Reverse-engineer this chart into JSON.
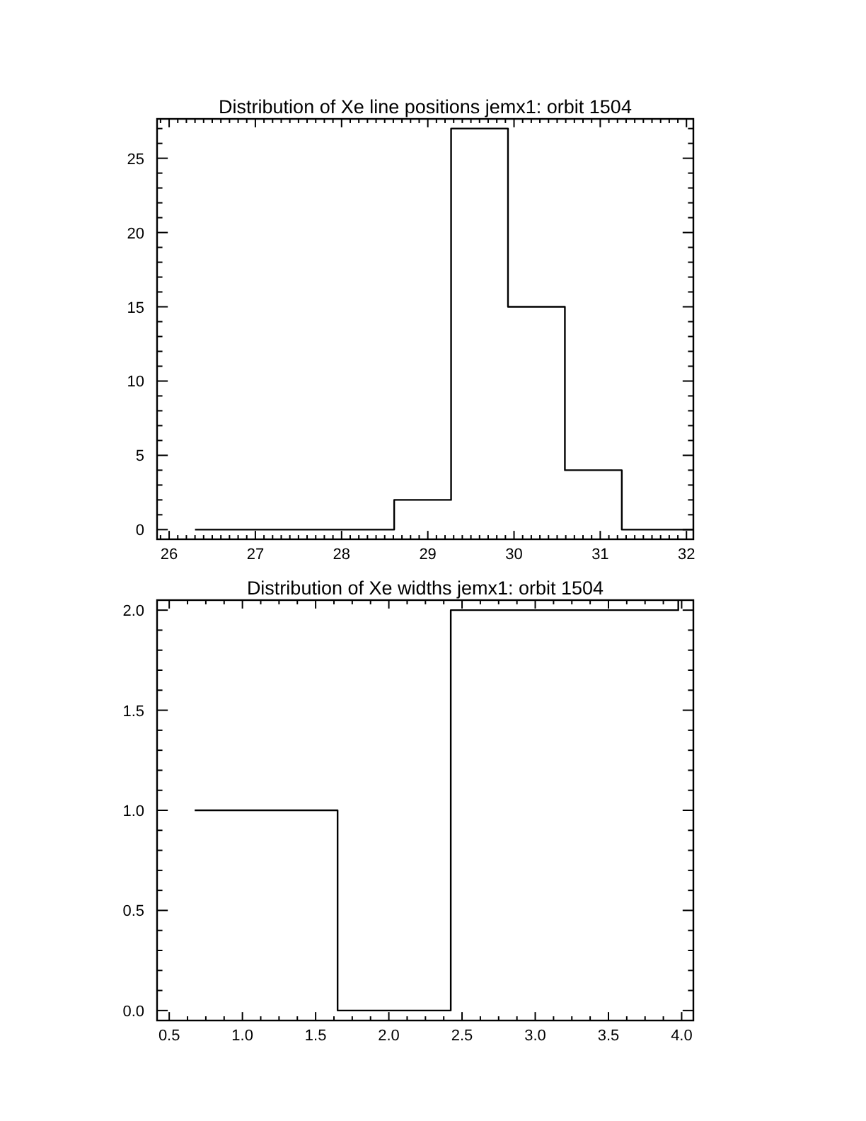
{
  "chart_data": [
    {
      "type": "step",
      "title": "Distribution of Xe line positions jemx1: orbit 1504",
      "x": [
        26.3,
        28.61,
        29.27,
        29.93,
        30.59,
        31.25,
        32.08
      ],
      "values": [
        0,
        2,
        27,
        15,
        4,
        0,
        0
      ],
      "color": "#000000",
      "xlim": [
        25.86,
        32.08
      ],
      "ylim": [
        -0.65,
        27.65
      ],
      "xticks": [
        {
          "value": 25.9,
          "label": null
        },
        26,
        {
          "value": 26.1,
          "label": null
        },
        {
          "value": 26.2,
          "label": null
        },
        {
          "value": 26.3,
          "label": null
        },
        {
          "value": 26.4,
          "label": null
        },
        {
          "value": 26.5,
          "label": null
        },
        {
          "value": 26.6,
          "label": null
        },
        {
          "value": 26.7,
          "label": null
        },
        {
          "value": 26.8,
          "label": null
        },
        {
          "value": 26.9,
          "label": null
        },
        27,
        {
          "value": 27.1,
          "label": null
        },
        {
          "value": 27.2,
          "label": null
        },
        {
          "value": 27.3,
          "label": null
        },
        {
          "value": 27.4,
          "label": null
        },
        {
          "value": 27.5,
          "label": null
        },
        {
          "value": 27.6,
          "label": null
        },
        {
          "value": 27.7,
          "label": null
        },
        {
          "value": 27.8,
          "label": null
        },
        {
          "value": 27.9,
          "label": null
        },
        28,
        {
          "value": 28.1,
          "label": null
        },
        {
          "value": 28.2,
          "label": null
        },
        {
          "value": 28.3,
          "label": null
        },
        {
          "value": 28.4,
          "label": null
        },
        {
          "value": 28.5,
          "label": null
        },
        {
          "value": 28.6,
          "label": null
        },
        {
          "value": 28.7,
          "label": null
        },
        {
          "value": 28.8,
          "label": null
        },
        {
          "value": 28.9,
          "label": null
        },
        29,
        {
          "value": 29.1,
          "label": null
        },
        {
          "value": 29.2,
          "label": null
        },
        {
          "value": 29.3,
          "label": null
        },
        {
          "value": 29.4,
          "label": null
        },
        {
          "value": 29.5,
          "label": null
        },
        {
          "value": 29.6,
          "label": null
        },
        {
          "value": 29.7,
          "label": null
        },
        {
          "value": 29.8,
          "label": null
        },
        {
          "value": 29.9,
          "label": null
        },
        30,
        {
          "value": 30.1,
          "label": null
        },
        {
          "value": 30.2,
          "label": null
        },
        {
          "value": 30.3,
          "label": null
        },
        {
          "value": 30.4,
          "label": null
        },
        {
          "value": 30.5,
          "label": null
        },
        {
          "value": 30.6,
          "label": null
        },
        {
          "value": 30.7,
          "label": null
        },
        {
          "value": 30.8,
          "label": null
        },
        {
          "value": 30.9,
          "label": null
        },
        31,
        {
          "value": 31.1,
          "label": null
        },
        {
          "value": 31.2,
          "label": null
        },
        {
          "value": 31.3,
          "label": null
        },
        {
          "value": 31.4,
          "label": null
        },
        {
          "value": 31.5,
          "label": null
        },
        {
          "value": 31.6,
          "label": null
        },
        {
          "value": 31.7,
          "label": null
        },
        {
          "value": 31.8,
          "label": null
        },
        {
          "value": 31.9,
          "label": null
        },
        32
      ],
      "yticks": [
        0,
        {
          "value": 1,
          "label": null
        },
        {
          "value": 2,
          "label": null
        },
        {
          "value": 3,
          "label": null
        },
        {
          "value": 4,
          "label": null
        },
        5,
        {
          "value": 6,
          "label": null
        },
        {
          "value": 7,
          "label": null
        },
        {
          "value": 8,
          "label": null
        },
        {
          "value": 9,
          "label": null
        },
        10,
        {
          "value": 11,
          "label": null
        },
        {
          "value": 12,
          "label": null
        },
        {
          "value": 13,
          "label": null
        },
        {
          "value": 14,
          "label": null
        },
        15,
        {
          "value": 16,
          "label": null
        },
        {
          "value": 17,
          "label": null
        },
        {
          "value": 18,
          "label": null
        },
        {
          "value": 19,
          "label": null
        },
        20,
        {
          "value": 21,
          "label": null
        },
        {
          "value": 22,
          "label": null
        },
        {
          "value": 23,
          "label": null
        },
        {
          "value": 24,
          "label": null
        },
        25,
        {
          "value": 26,
          "label": null
        },
        {
          "value": 27,
          "label": null
        }
      ]
    },
    {
      "type": "step",
      "title": "Distribution of Xe widths jemx1: orbit 1504",
      "x": [
        0.674,
        1.65,
        2.423,
        3.977
      ],
      "values": [
        1,
        0,
        2,
        2.05
      ],
      "color": "#000000",
      "xlim": [
        0.417,
        4.08
      ],
      "ylim": [
        -0.05,
        2.05
      ],
      "xticks": [
        0.5,
        {
          "value": 0.625,
          "label": null
        },
        {
          "value": 0.75,
          "label": null
        },
        {
          "value": 0.875,
          "label": null
        },
        {
          "value": 1,
          "label": "1.0"
        },
        {
          "value": 1.125,
          "label": null
        },
        {
          "value": 1.25,
          "label": null
        },
        {
          "value": 1.375,
          "label": null
        },
        1.5,
        {
          "value": 1.625,
          "label": null
        },
        {
          "value": 1.75,
          "label": null
        },
        {
          "value": 1.875,
          "label": null
        },
        {
          "value": 2,
          "label": "2.0"
        },
        {
          "value": 2.125,
          "label": null
        },
        {
          "value": 2.25,
          "label": null
        },
        {
          "value": 2.375,
          "label": null
        },
        2.5,
        {
          "value": 2.625,
          "label": null
        },
        {
          "value": 2.75,
          "label": null
        },
        {
          "value": 2.875,
          "label": null
        },
        {
          "value": 3,
          "label": "3.0"
        },
        {
          "value": 3.125,
          "label": null
        },
        {
          "value": 3.25,
          "label": null
        },
        {
          "value": 3.375,
          "label": null
        },
        3.5,
        {
          "value": 3.625,
          "label": null
        },
        {
          "value": 3.75,
          "label": null
        },
        {
          "value": 3.875,
          "label": null
        },
        {
          "value": 4,
          "label": "4.0"
        }
      ],
      "yticks": [
        {
          "value": 0,
          "label": "0.0"
        },
        {
          "value": 0.1,
          "label": null
        },
        {
          "value": 0.2,
          "label": null
        },
        {
          "value": 0.3,
          "label": null
        },
        {
          "value": 0.4,
          "label": null
        },
        0.5,
        {
          "value": 0.6,
          "label": null
        },
        {
          "value": 0.7,
          "label": null
        },
        {
          "value": 0.8,
          "label": null
        },
        {
          "value": 0.9,
          "label": null
        },
        {
          "value": 1,
          "label": "1.0"
        },
        {
          "value": 1.1,
          "label": null
        },
        {
          "value": 1.2,
          "label": null
        },
        {
          "value": 1.3,
          "label": null
        },
        {
          "value": 1.4,
          "label": null
        },
        1.5,
        {
          "value": 1.6,
          "label": null
        },
        {
          "value": 1.7,
          "label": null
        },
        {
          "value": 1.8,
          "label": null
        },
        {
          "value": 1.9,
          "label": null
        },
        {
          "value": 2,
          "label": "2.0"
        }
      ]
    }
  ]
}
